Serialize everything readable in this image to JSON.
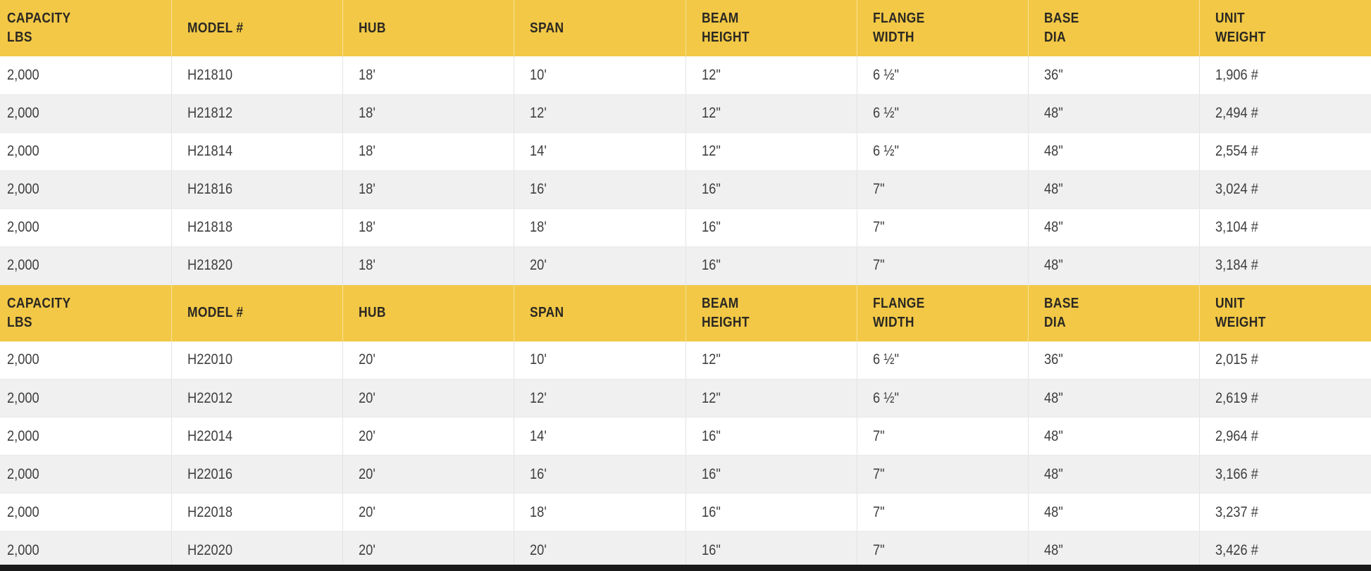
{
  "theme": {
    "header_bg": "#F2C846",
    "header_text": "#2B2823",
    "row_text": "#3E3E3E",
    "row_bg": "#FFFFFF",
    "row_alt_bg": "#F0F0F0",
    "grid_line": "#E3E3E3",
    "bottom_strip": "#191919"
  },
  "columns": [
    {
      "id": "capacity-lbs",
      "lines": [
        "CAPACITY",
        "LBS"
      ]
    },
    {
      "id": "model-number",
      "lines": [
        "MODEL #"
      ]
    },
    {
      "id": "hub",
      "lines": [
        "HUB"
      ]
    },
    {
      "id": "span",
      "lines": [
        "SPAN"
      ]
    },
    {
      "id": "beam-height",
      "lines": [
        "BEAM",
        "HEIGHT"
      ]
    },
    {
      "id": "flange-width",
      "lines": [
        "FLANGE",
        "WIDTH"
      ]
    },
    {
      "id": "base-dia",
      "lines": [
        "BASE",
        "DIA"
      ]
    },
    {
      "id": "unit-weight",
      "lines": [
        "UNIT",
        "WEIGHT"
      ]
    }
  ],
  "tables": [
    {
      "name": "18-ft-hub-series",
      "rows": [
        [
          "2,000",
          "H21810",
          "18'",
          "10'",
          "12\"",
          "6 ½\"",
          "36\"",
          "1,906 #"
        ],
        [
          "2,000",
          "H21812",
          "18'",
          "12'",
          "12\"",
          "6 ½\"",
          "48\"",
          "2,494 #"
        ],
        [
          "2,000",
          "H21814",
          "18'",
          "14'",
          "12\"",
          "6 ½\"",
          "48\"",
          "2,554 #"
        ],
        [
          "2,000",
          "H21816",
          "18'",
          "16'",
          "16\"",
          "7\"",
          "48\"",
          "3,024 #"
        ],
        [
          "2,000",
          "H21818",
          "18'",
          "18'",
          "16\"",
          "7\"",
          "48\"",
          "3,104 #"
        ],
        [
          "2,000",
          "H21820",
          "18'",
          "20'",
          "16\"",
          "7\"",
          "48\"",
          "3,184 #"
        ]
      ]
    },
    {
      "name": "20-ft-hub-series",
      "rows": [
        [
          "2,000",
          "H22010",
          "20'",
          "10'",
          "12\"",
          "6 ½\"",
          "36\"",
          "2,015 #"
        ],
        [
          "2,000",
          "H22012",
          "20'",
          "12'",
          "12\"",
          "6 ½\"",
          "48\"",
          "2,619 #"
        ],
        [
          "2,000",
          "H22014",
          "20'",
          "14'",
          "16\"",
          "7\"",
          "48\"",
          "2,964 #"
        ],
        [
          "2,000",
          "H22016",
          "20'",
          "16'",
          "16\"",
          "7\"",
          "48\"",
          "3,166 #"
        ],
        [
          "2,000",
          "H22018",
          "20'",
          "18'",
          "16\"",
          "7\"",
          "48\"",
          "3,237 #"
        ],
        [
          "2,000",
          "H22020",
          "20'",
          "20'",
          "16\"",
          "7\"",
          "48\"",
          "3,426 #"
        ]
      ]
    }
  ],
  "chart_data": [
    {
      "type": "table",
      "columns": [
        "CAPACITY LBS",
        "MODEL #",
        "HUB",
        "SPAN",
        "BEAM HEIGHT",
        "FLANGE WIDTH",
        "BASE DIA",
        "UNIT WEIGHT"
      ],
      "rows": [
        [
          "2,000",
          "H21810",
          "18'",
          "10'",
          "12\"",
          "6 ½\"",
          "36\"",
          "1,906 #"
        ],
        [
          "2,000",
          "H21812",
          "18'",
          "12'",
          "12\"",
          "6 ½\"",
          "48\"",
          "2,494 #"
        ],
        [
          "2,000",
          "H21814",
          "18'",
          "14'",
          "12\"",
          "6 ½\"",
          "48\"",
          "2,554 #"
        ],
        [
          "2,000",
          "H21816",
          "18'",
          "16'",
          "16\"",
          "7\"",
          "48\"",
          "3,024 #"
        ],
        [
          "2,000",
          "H21818",
          "18'",
          "18'",
          "16\"",
          "7\"",
          "48\"",
          "3,104 #"
        ],
        [
          "2,000",
          "H21820",
          "18'",
          "20'",
          "16\"",
          "7\"",
          "48\"",
          "3,184 #"
        ]
      ]
    },
    {
      "type": "table",
      "columns": [
        "CAPACITY LBS",
        "MODEL #",
        "HUB",
        "SPAN",
        "BEAM HEIGHT",
        "FLANGE WIDTH",
        "BASE DIA",
        "UNIT WEIGHT"
      ],
      "rows": [
        [
          "2,000",
          "H22010",
          "20'",
          "10'",
          "12\"",
          "6 ½\"",
          "36\"",
          "2,015 #"
        ],
        [
          "2,000",
          "H22012",
          "20'",
          "12'",
          "12\"",
          "6 ½\"",
          "48\"",
          "2,619 #"
        ],
        [
          "2,000",
          "H22014",
          "20'",
          "14'",
          "16\"",
          "7\"",
          "48\"",
          "2,964 #"
        ],
        [
          "2,000",
          "H22016",
          "20'",
          "16'",
          "16\"",
          "7\"",
          "48\"",
          "3,166 #"
        ],
        [
          "2,000",
          "H22018",
          "20'",
          "18'",
          "16\"",
          "7\"",
          "48\"",
          "3,237 #"
        ],
        [
          "2,000",
          "H22020",
          "20'",
          "20'",
          "16\"",
          "7\"",
          "48\"",
          "3,426 #"
        ]
      ]
    }
  ]
}
